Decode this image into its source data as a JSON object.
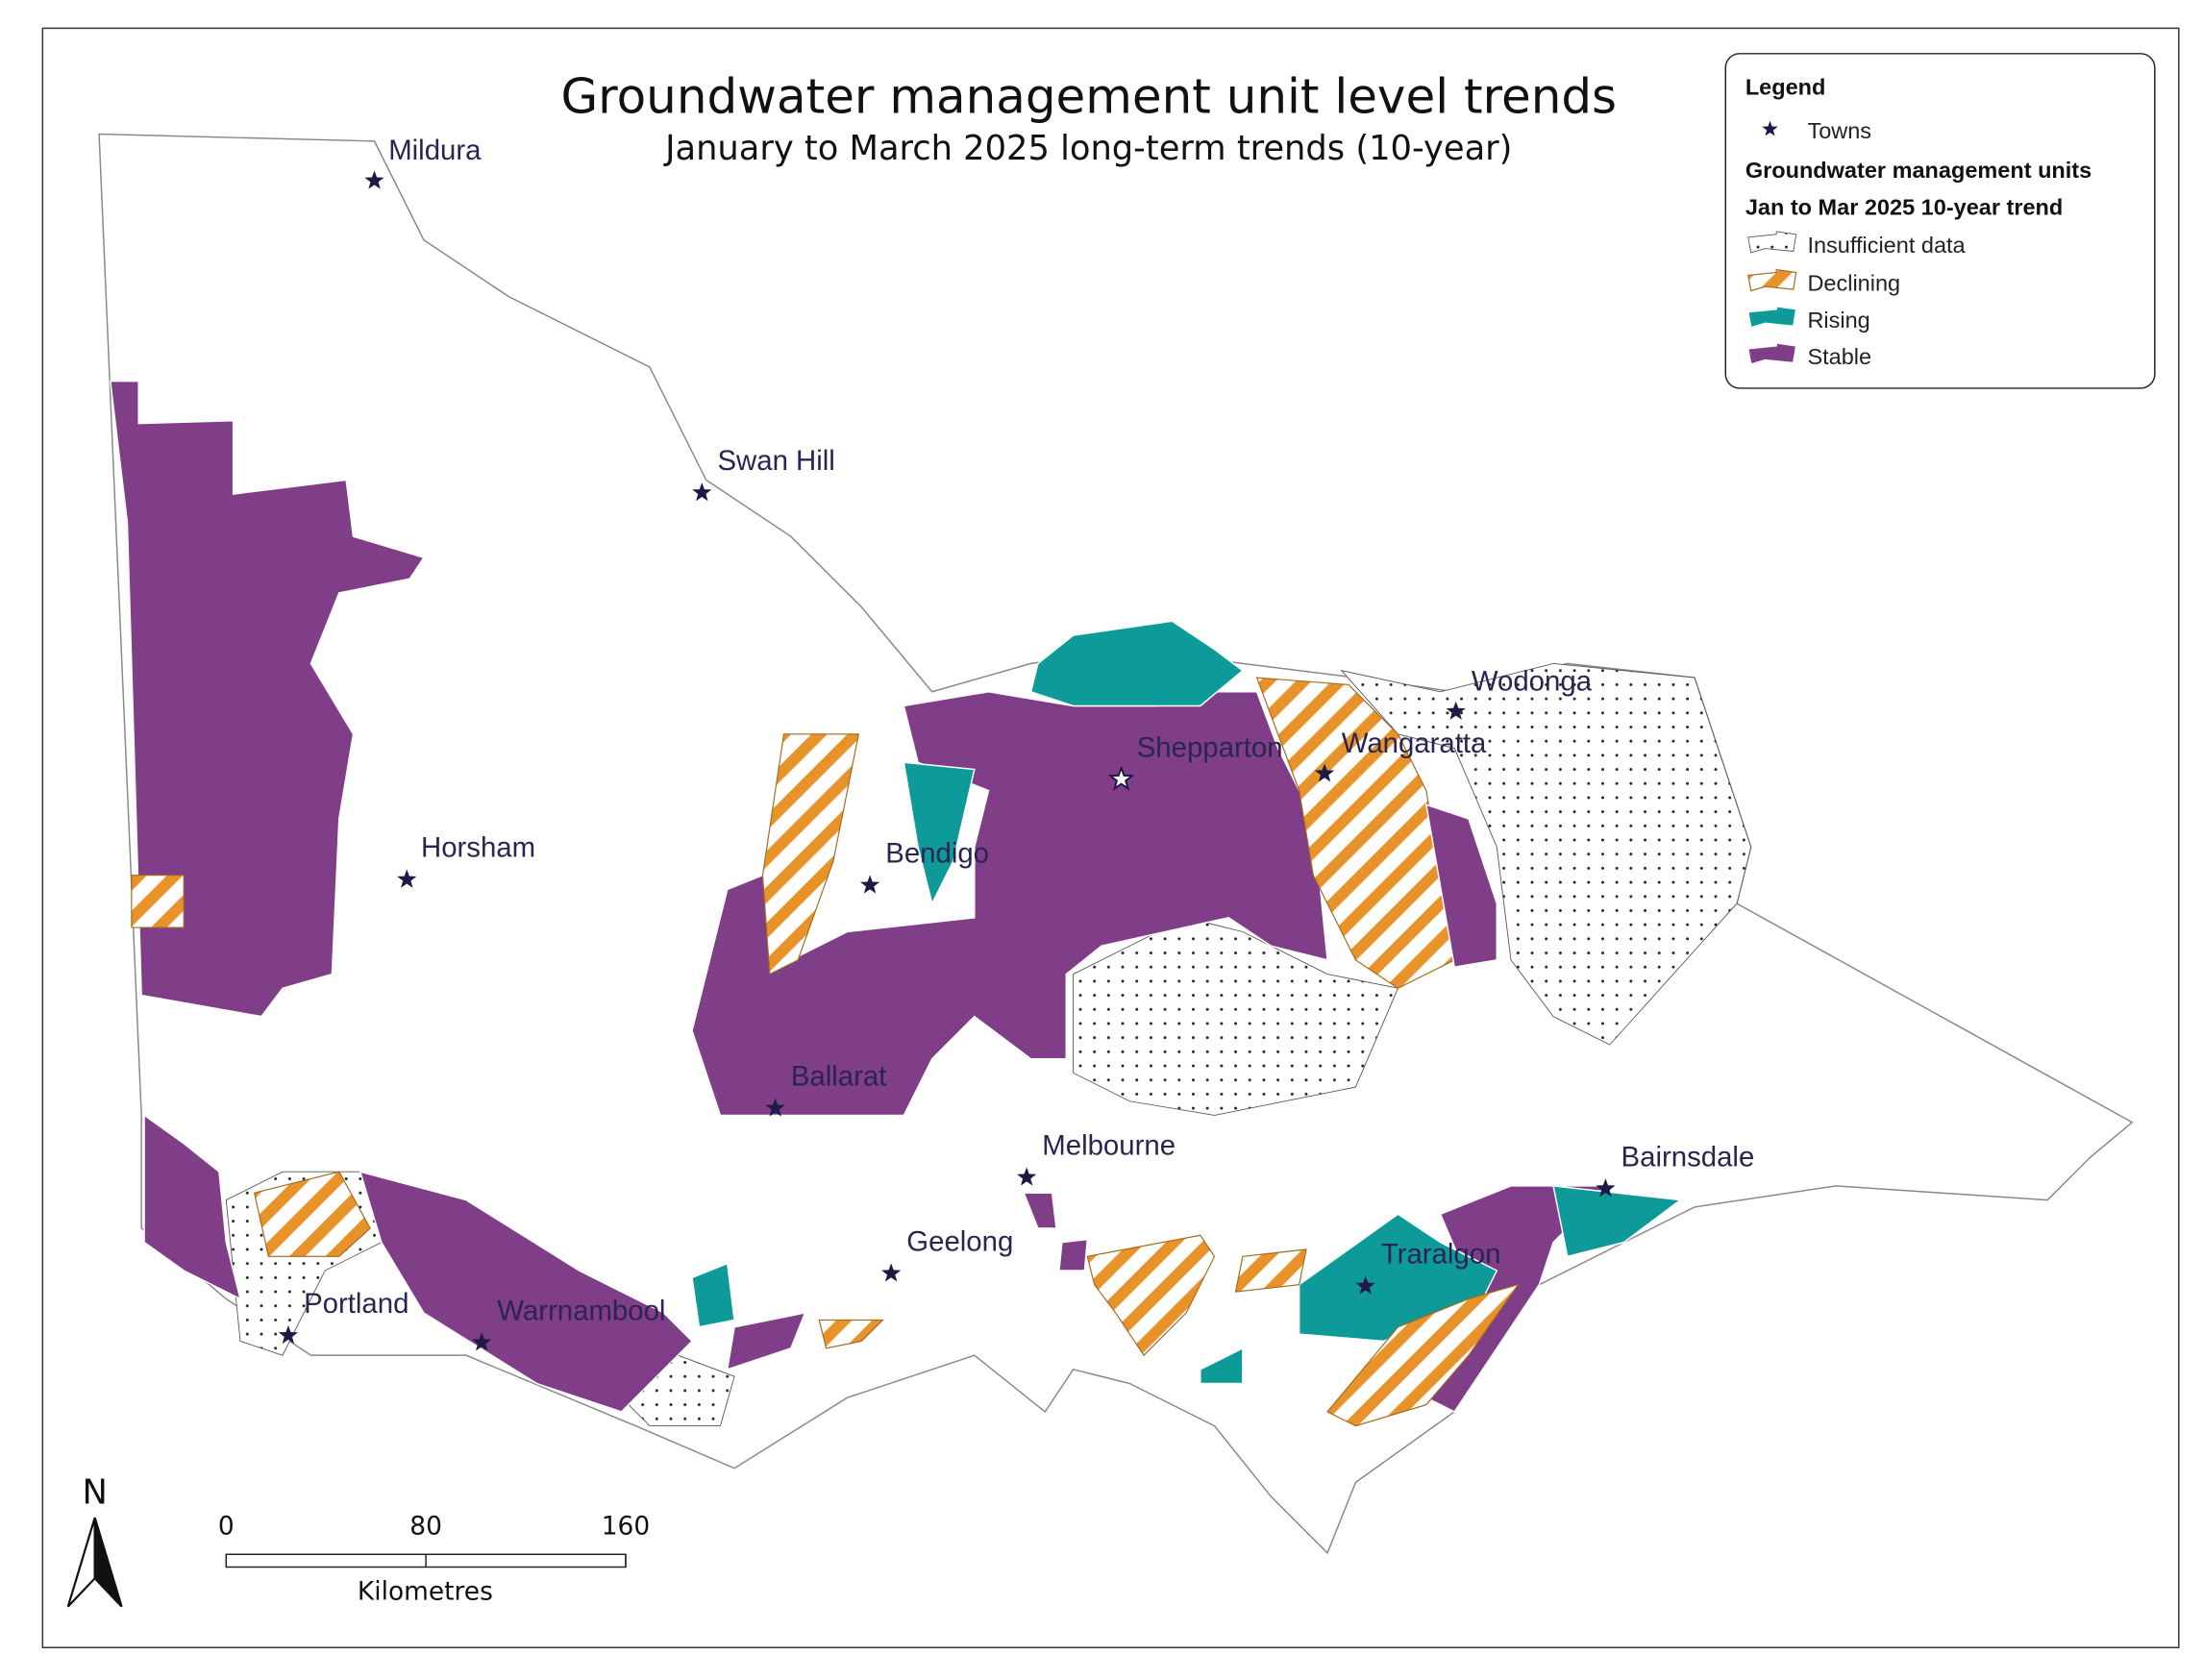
{
  "title": "Groundwater management unit level trends",
  "subtitle": "January to March 2025 long-term trends (10-year)",
  "legend": {
    "title": "Legend",
    "towns": "Towns",
    "section": "Groundwater management units",
    "subsection": "Jan to Mar 2025 10-year trend",
    "items": [
      "Insufficient data",
      "Declining",
      "Rising",
      "Stable"
    ]
  },
  "towns": [
    "Mildura",
    "Swan Hill",
    "Horsham",
    "Bendigo",
    "Shepparton",
    "Wangaratta",
    "Wodonga",
    "Ballarat",
    "Melbourne",
    "Geelong",
    "Portland",
    "Warrnambool",
    "Traralgon",
    "Bairnsdale"
  ],
  "north": "N",
  "scale_bar": {
    "ticks": [
      0,
      80,
      160
    ],
    "unit": "Kilometres"
  }
}
